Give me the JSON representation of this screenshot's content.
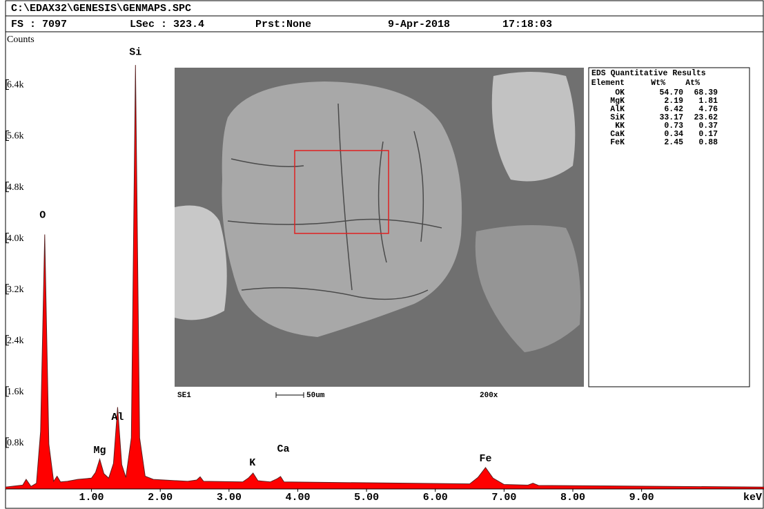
{
  "header": {
    "path": "C:\\EDAX32\\GENESIS\\GENMAPS.SPC",
    "fs": "FS : 7097",
    "lsec": "LSec : 323.4",
    "prst": "Prst:None",
    "date": "9-Apr-2018",
    "time": "17:18:03"
  },
  "image": {
    "detector": "SE1",
    "scale": "50um",
    "magnification": "200x"
  },
  "results": {
    "title": "EDS Quantitative Results",
    "columns": [
      "Element",
      "Wt%",
      "At%"
    ],
    "rows": [
      [
        "OK",
        "54.70",
        "68.39"
      ],
      [
        "MgK",
        "2.19",
        "1.81"
      ],
      [
        "AlK",
        "6.42",
        "4.76"
      ],
      [
        "SiK",
        "33.17",
        "23.62"
      ],
      [
        "KK",
        "0.73",
        "0.37"
      ],
      [
        "CaK",
        "0.34",
        "0.17"
      ],
      [
        "FeK",
        "2.45",
        "0.88"
      ]
    ]
  },
  "chart_data": {
    "type": "area",
    "y_label": "Counts",
    "x_label": "keV",
    "color": "#ff0000",
    "xlim": [
      -0.25,
      10.78
    ],
    "ylim": [
      0,
      7150
    ],
    "xticks": [
      {
        "value": 1,
        "label": "1.00"
      },
      {
        "value": 2,
        "label": "2.00"
      },
      {
        "value": 3,
        "label": "3.00"
      },
      {
        "value": 4,
        "label": "4.00"
      },
      {
        "value": 5,
        "label": "5.00"
      },
      {
        "value": 6,
        "label": "6.00"
      },
      {
        "value": 7,
        "label": "7.00"
      },
      {
        "value": 8,
        "label": "8.00"
      },
      {
        "value": 9,
        "label": "9.00"
      }
    ],
    "yticks": [
      {
        "value": 800,
        "label": "0.8k"
      },
      {
        "value": 1600,
        "label": "1.6k"
      },
      {
        "value": 2400,
        "label": "2.4k"
      },
      {
        "value": 3200,
        "label": "3.2k"
      },
      {
        "value": 4000,
        "label": "4.0k"
      },
      {
        "value": 4800,
        "label": "4.8k"
      },
      {
        "value": 5600,
        "label": "5.6k"
      },
      {
        "value": 6400,
        "label": "6.4k"
      }
    ],
    "x": [
      -0.25,
      0.0,
      0.05,
      0.12,
      0.2,
      0.26,
      0.32,
      0.38,
      0.45,
      0.5,
      0.55,
      0.65,
      0.8,
      1.0,
      1.06,
      1.12,
      1.18,
      1.25,
      1.32,
      1.38,
      1.44,
      1.5,
      1.58,
      1.64,
      1.7,
      1.78,
      1.9,
      2.4,
      2.53,
      2.58,
      2.63,
      3.2,
      3.28,
      3.35,
      3.42,
      3.6,
      3.7,
      3.75,
      3.8,
      6.5,
      6.62,
      6.73,
      6.84,
      7.0,
      7.35,
      7.42,
      7.5,
      10.78
    ],
    "values": [
      30,
      60,
      150,
      40,
      90,
      900,
      3980,
      700,
      120,
      200,
      110,
      120,
      150,
      170,
      260,
      465,
      240,
      170,
      400,
      1280,
      380,
      180,
      800,
      6630,
      800,
      200,
      150,
      120,
      140,
      190,
      120,
      110,
      170,
      250,
      130,
      110,
      160,
      195,
      110,
      80,
      180,
      335,
      170,
      70,
      60,
      90,
      55,
      30
    ],
    "annotations": [
      {
        "text": "O",
        "x": 0.29,
        "y": 4280
      },
      {
        "text": "Mg",
        "x": 1.12,
        "y": 605
      },
      {
        "text": "Al",
        "x": 1.38,
        "y": 1125
      },
      {
        "text": "Si",
        "x": 1.64,
        "y": 6830
      },
      {
        "text": "K",
        "x": 3.34,
        "y": 410
      },
      {
        "text": "Ca",
        "x": 3.79,
        "y": 627
      },
      {
        "text": "Fe",
        "x": 6.73,
        "y": 475
      }
    ]
  }
}
